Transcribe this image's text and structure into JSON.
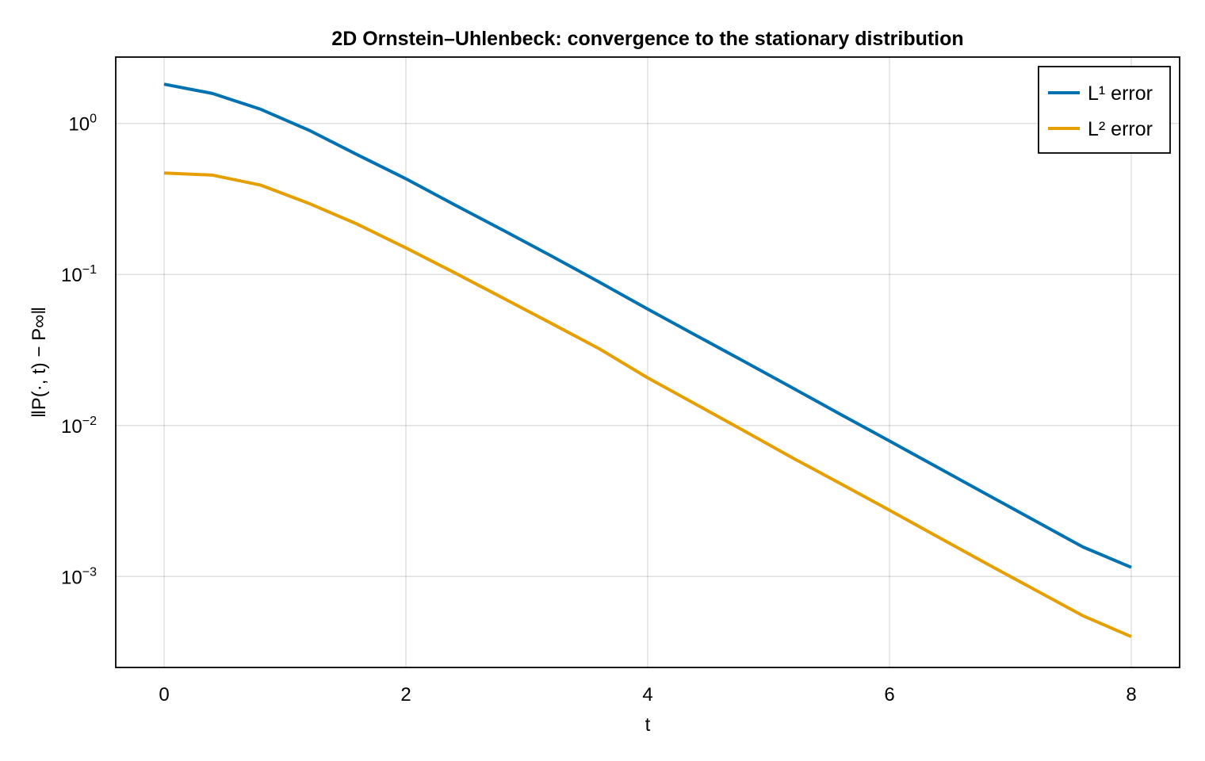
{
  "chart_data": {
    "type": "line",
    "title": "2D Ornstein–Uhlenbeck: convergence to the stationary distribution",
    "xlabel": "t",
    "ylabel": "‖P(·, t) − P∞‖",
    "yscale": "log10",
    "xlim": [
      -0.4,
      8.4
    ],
    "ylim": [
      0.00025,
      2.75
    ],
    "x_ticks": [
      0,
      2,
      4,
      6,
      8
    ],
    "x_tick_labels": [
      "0",
      "2",
      "4",
      "6",
      "8"
    ],
    "y_ticks": [
      0.001,
      0.01,
      0.1,
      1
    ],
    "y_tick_labels": [
      {
        "base": "10",
        "exp": "−3"
      },
      {
        "base": "10",
        "exp": "−2"
      },
      {
        "base": "10",
        "exp": "−1"
      },
      {
        "base": "10",
        "exp": "0"
      }
    ],
    "grid": true,
    "legend_position": "top-right",
    "x": [
      0,
      0.4,
      0.8,
      1.2,
      1.6,
      2.0,
      2.4,
      2.8,
      3.2,
      3.6,
      4.0,
      4.4,
      4.8,
      5.2,
      5.6,
      6.0,
      6.4,
      6.8,
      7.2,
      7.6,
      8.0
    ],
    "series": [
      {
        "name": "L¹ error",
        "color": "#0072b2",
        "values": [
          1.82,
          1.58,
          1.24,
          0.9,
          0.62,
          0.43,
          0.29,
          0.197,
          0.133,
          0.089,
          0.059,
          0.0395,
          0.0265,
          0.0177,
          0.0118,
          0.0079,
          0.00527,
          0.00352,
          0.00235,
          0.00157,
          0.00115
        ]
      },
      {
        "name": "L² error",
        "color": "#e69f00",
        "values": [
          0.47,
          0.455,
          0.39,
          0.295,
          0.215,
          0.15,
          0.103,
          0.07,
          0.0476,
          0.0322,
          0.0207,
          0.0138,
          0.0092,
          0.0061,
          0.0041,
          0.00275,
          0.00183,
          0.00122,
          0.00082,
          0.00055,
          0.0004
        ]
      }
    ]
  }
}
